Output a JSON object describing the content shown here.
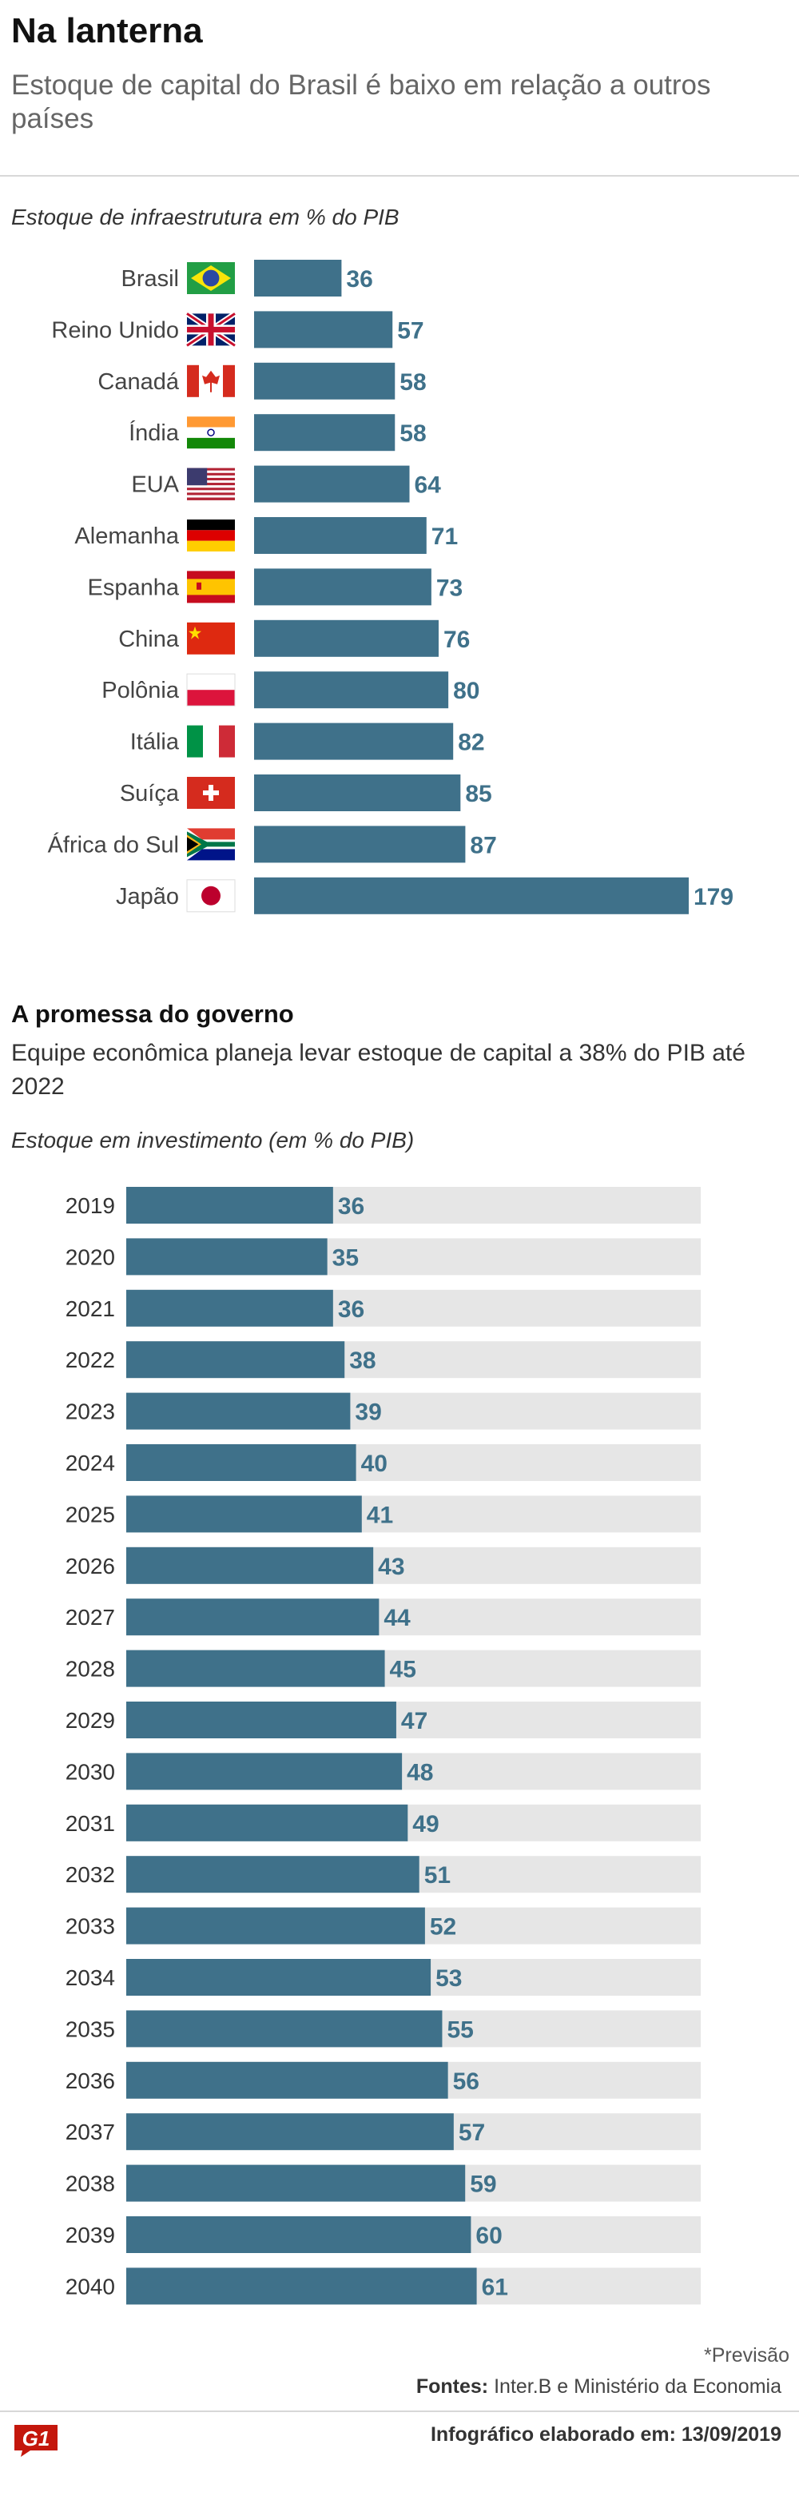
{
  "header": {
    "title": "Na lanterna",
    "subtitle": "Estoque de capital do Brasil é baixo em relação a outros países"
  },
  "section1": {
    "label": "Estoque de infraestrutura em % do PIB"
  },
  "section2": {
    "title": "A promessa do governo",
    "description": "Equipe econômica planeja levar estoque de capital a 38% do PIB até 2022",
    "label": "Estoque em investimento (em % do PIB)"
  },
  "chart_data": [
    {
      "type": "bar",
      "orientation": "horizontal",
      "title": "Estoque de infraestrutura em % do PIB",
      "categories": [
        "Brasil",
        "Reino Unido",
        "Canadá",
        "Índia",
        "EUA",
        "Alemanha",
        "Espanha",
        "China",
        "Polônia",
        "Itália",
        "Suíça",
        "África do Sul",
        "Japão"
      ],
      "flags": [
        "brazil-flag-icon",
        "uk-flag-icon",
        "canada-flag-icon",
        "india-flag-icon",
        "usa-flag-icon",
        "germany-flag-icon",
        "spain-flag-icon",
        "china-flag-icon",
        "poland-flag-icon",
        "italy-flag-icon",
        "switzerland-flag-icon",
        "south-africa-flag-icon",
        "japan-flag-icon"
      ],
      "values": [
        36,
        57,
        58,
        58,
        64,
        71,
        73,
        76,
        80,
        82,
        85,
        87,
        179
      ],
      "xlim": [
        0,
        179
      ],
      "grid": false,
      "bar_color": "#3f718a",
      "label_color": "#3f718a"
    },
    {
      "type": "bar",
      "orientation": "horizontal",
      "title": "Estoque em investimento (em % do PIB)",
      "categories": [
        "2019",
        "2020",
        "2021",
        "2022",
        "2023",
        "2024",
        "2025",
        "2026",
        "2027",
        "2028",
        "2029",
        "2030",
        "2031",
        "2032",
        "2033",
        "2034",
        "2035",
        "2036",
        "2037",
        "2038",
        "2039",
        "2040"
      ],
      "values": [
        36,
        35,
        36,
        38,
        39,
        40,
        41,
        43,
        44,
        45,
        47,
        48,
        49,
        51,
        52,
        53,
        55,
        56,
        57,
        59,
        60,
        61
      ],
      "xlim": [
        0,
        100
      ],
      "grid": false,
      "bar_color": "#3f718a",
      "track_color": "#e6e6e6",
      "label_color": "#3f718a"
    }
  ],
  "footer": {
    "footnote": "*Previsão",
    "sources_label": "Fontes:",
    "sources_text": "Inter.B e Ministério da Economia",
    "credit": "Infográfico elaborado em: 13/09/2019",
    "logo_text": "G1",
    "logo_color": "#c4170c"
  }
}
